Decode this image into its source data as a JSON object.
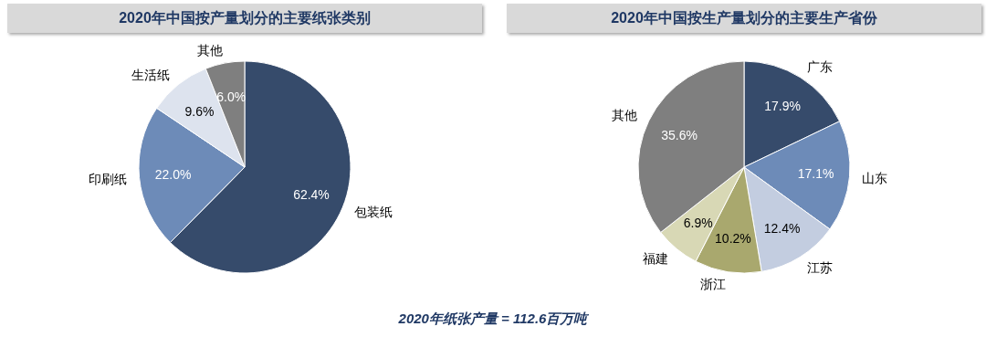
{
  "chart_data": [
    {
      "type": "pie",
      "title": "2020年中国按产量划分的主要纸张类别",
      "categories": [
        "包装纸",
        "印刷纸",
        "生活纸",
        "其他"
      ],
      "values": [
        62.4,
        22.0,
        9.6,
        6.0
      ],
      "colors": [
        "#364b6b",
        "#6d8bb8",
        "#dde3ee",
        "#7f7f7f"
      ],
      "value_labels": [
        "62.4%",
        "22.0%",
        "9.6%",
        "6.0%"
      ],
      "annotations": [
        "2020年纸张产量 = 112.6百万吨"
      ]
    },
    {
      "type": "pie",
      "title": "2020年中国按生产量划分的主要生产省份",
      "categories": [
        "广东",
        "山东",
        "江苏",
        "浙江",
        "福建",
        "其他"
      ],
      "values": [
        17.9,
        17.1,
        12.4,
        10.2,
        6.9,
        35.6
      ],
      "colors": [
        "#364b6b",
        "#6d8bb8",
        "#c3cde0",
        "#a9a86e",
        "#d8d8b5",
        "#7f7f7f"
      ],
      "value_labels": [
        "17.9%",
        "17.1%",
        "12.4%",
        "10.2%",
        "6.9%",
        "35.6%"
      ]
    }
  ]
}
